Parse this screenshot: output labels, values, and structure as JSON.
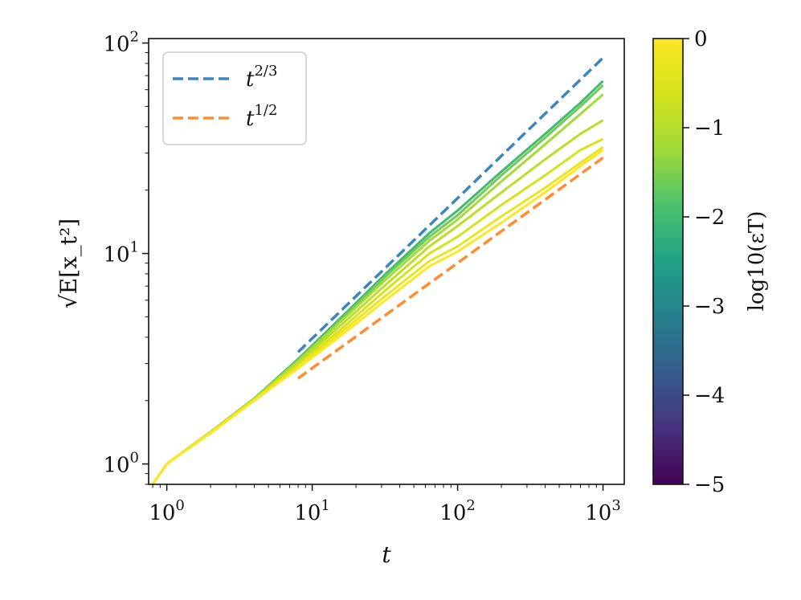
{
  "chart_data": {
    "type": "line",
    "xscale": "log",
    "yscale": "log",
    "xlim": [
      0.75,
      1400
    ],
    "ylim": [
      0.8,
      105
    ],
    "xlabel": "t",
    "ylabel": "√E[x_t²]",
    "x_ticks": [
      {
        "base": "10",
        "exp": "0",
        "value": 1
      },
      {
        "base": "10",
        "exp": "1",
        "value": 10
      },
      {
        "base": "10",
        "exp": "2",
        "value": 100
      },
      {
        "base": "10",
        "exp": "3",
        "value": 1000
      }
    ],
    "y_ticks": [
      {
        "base": "10",
        "exp": "0",
        "value": 1
      },
      {
        "base": "10",
        "exp": "1",
        "value": 10
      },
      {
        "base": "10",
        "exp": "2",
        "value": 100
      }
    ],
    "grid": false,
    "legend": {
      "placement": "top-left",
      "entries": [
        {
          "base": "t",
          "exp": "2/3",
          "color": "#3a86c0",
          "style": "dashed"
        },
        {
          "base": "t",
          "exp": "1/2",
          "color": "#ff8c2e",
          "style": "dashed"
        }
      ]
    },
    "reference_lines": [
      {
        "exponent": 0.6667,
        "x": [
          8,
          1000
        ],
        "y": [
          3.4,
          85
        ],
        "color": "#3a86c0"
      },
      {
        "exponent": 0.5,
        "x": [
          8,
          1000
        ],
        "y": [
          2.55,
          28.5
        ],
        "color": "#ff8c2e"
      }
    ],
    "colorbar": {
      "label": "log10(εT)",
      "colormap": "viridis",
      "range": [
        -5,
        0
      ],
      "ticks": [
        "0",
        "−1",
        "−2",
        "−3",
        "−4",
        "−5"
      ]
    },
    "series": [
      {
        "log_eps": -2.0,
        "x": [
          0.75,
          1,
          2,
          4,
          8,
          16,
          32,
          64,
          100,
          200,
          400,
          700,
          1000
        ],
        "y": [
          0.75,
          1.0,
          1.42,
          2.05,
          3.15,
          5.0,
          8.0,
          12.5,
          16.0,
          24.5,
          37.0,
          52.0,
          66.0
        ]
      },
      {
        "log_eps": -1.6,
        "x": [
          0.75,
          1,
          2,
          4,
          8,
          16,
          32,
          64,
          100,
          200,
          400,
          700,
          1000
        ],
        "y": [
          0.75,
          1.0,
          1.42,
          2.05,
          3.12,
          4.9,
          7.8,
          12.0,
          15.2,
          23.5,
          35.5,
          50.0,
          63.0
        ]
      },
      {
        "log_eps": -1.2,
        "x": [
          0.75,
          1,
          2,
          4,
          8,
          16,
          32,
          64,
          100,
          200,
          400,
          700,
          1000
        ],
        "y": [
          0.75,
          1.0,
          1.42,
          2.04,
          3.08,
          4.8,
          7.5,
          11.5,
          14.5,
          22.0,
          33.0,
          46.0,
          57.0
        ]
      },
      {
        "log_eps": -0.9,
        "x": [
          0.75,
          1,
          2,
          4,
          8,
          16,
          32,
          64,
          100,
          200,
          400,
          700,
          1000
        ],
        "y": [
          0.75,
          1.0,
          1.42,
          2.03,
          3.02,
          4.6,
          7.1,
          10.8,
          13.5,
          19.5,
          28.0,
          37.0,
          43.0
        ]
      },
      {
        "log_eps": -0.6,
        "x": [
          0.75,
          1,
          2,
          4,
          8,
          16,
          32,
          64,
          100,
          200,
          400,
          700,
          1000
        ],
        "y": [
          0.75,
          1.0,
          1.41,
          2.02,
          2.96,
          4.4,
          6.7,
          10.0,
          12.0,
          17.0,
          23.5,
          31.0,
          35.0
        ]
      },
      {
        "log_eps": -0.3,
        "x": [
          0.75,
          1,
          2,
          4,
          8,
          16,
          32,
          64,
          100,
          200,
          400,
          700,
          1000
        ],
        "y": [
          0.75,
          1.0,
          1.41,
          2.01,
          2.9,
          4.25,
          6.3,
          9.2,
          10.8,
          15.0,
          20.5,
          27.0,
          32.0
        ]
      },
      {
        "log_eps": 0.0,
        "x": [
          0.75,
          1,
          2,
          4,
          8,
          16,
          32,
          64,
          100,
          200,
          400,
          700,
          1000
        ],
        "y": [
          0.75,
          1.0,
          1.4,
          2.0,
          2.85,
          4.1,
          6.0,
          8.7,
          10.2,
          14.0,
          19.5,
          26.0,
          31.0
        ]
      }
    ]
  }
}
